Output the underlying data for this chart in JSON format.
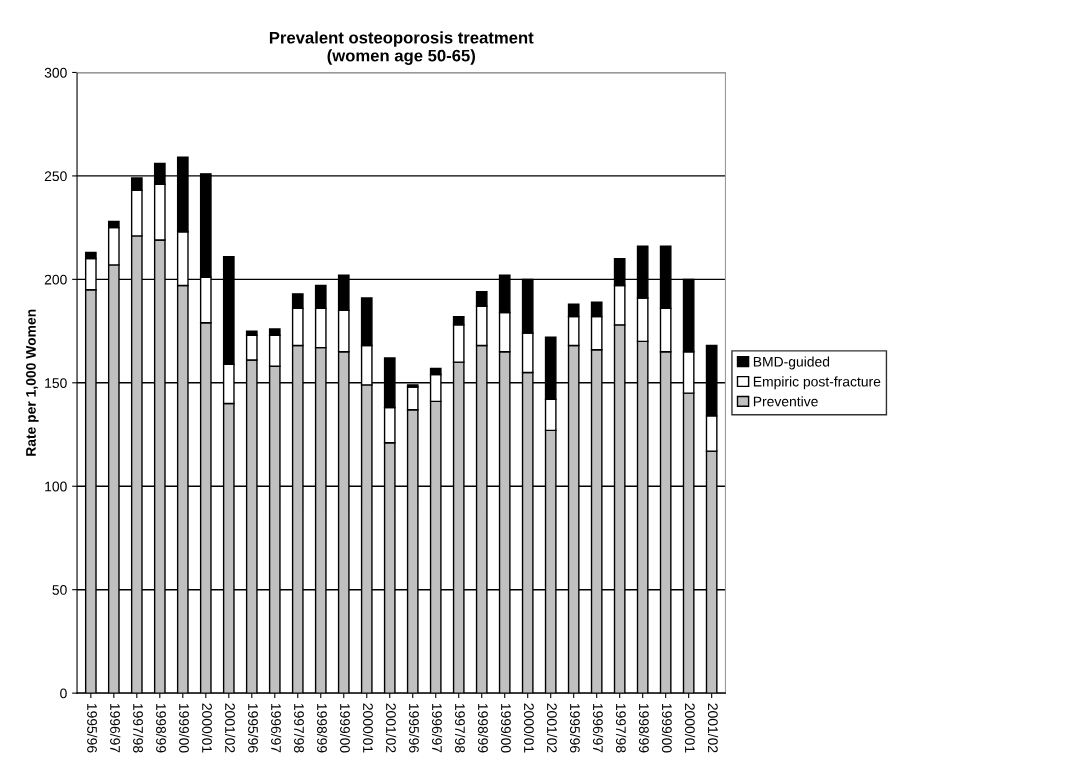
{
  "chart_data": {
    "type": "bar",
    "title": "Prevalent osteoporosis treatment\n(women age 50-65)",
    "ylabel": "Rate per 1,000 Women",
    "categories": [
      "1995/96",
      "1996/97",
      "1997/98",
      "1998/99",
      "1999/00",
      "2000/01",
      "2001/02",
      "1995/96",
      "1996/97",
      "1997/98",
      "1998/99",
      "1999/00",
      "2000/01",
      "2001/02",
      "1995/96",
      "1996/97",
      "1997/98",
      "1998/99",
      "1999/00",
      "2000/01",
      "2001/02",
      "1995/96",
      "1996/97",
      "1997/98",
      "1998/99",
      "1999/00",
      "2000/01",
      "2001/02"
    ],
    "stacked": true,
    "series": [
      {
        "name": "Preventive",
        "color": "#c0c0c0",
        "values": [
          195,
          207,
          221,
          219,
          197,
          179,
          140,
          161,
          158,
          168,
          167,
          165,
          149,
          121,
          137,
          141,
          160,
          168,
          165,
          155,
          127,
          168,
          166,
          178,
          170,
          165,
          145,
          117
        ]
      },
      {
        "name": "Empiric post-fracture",
        "color": "#ffffff",
        "values": [
          15,
          18,
          22,
          27,
          26,
          22,
          19,
          12,
          15,
          18,
          19,
          20,
          19,
          17,
          11,
          13,
          18,
          19,
          19,
          19,
          15,
          14,
          16,
          19,
          21,
          21,
          20,
          17
        ]
      },
      {
        "name": "BMD-guided",
        "color": "#000000",
        "values": [
          3,
          3,
          6,
          10,
          36,
          50,
          52,
          2,
          3,
          7,
          11,
          17,
          23,
          24,
          1,
          3,
          4,
          7,
          18,
          26,
          30,
          6,
          7,
          13,
          25,
          30,
          35,
          34
        ]
      }
    ],
    "ylim": [
      0,
      300
    ],
    "yticks": [
      0,
      50,
      100,
      150,
      200,
      250,
      300
    ],
    "grid": "y",
    "legend": "right"
  }
}
